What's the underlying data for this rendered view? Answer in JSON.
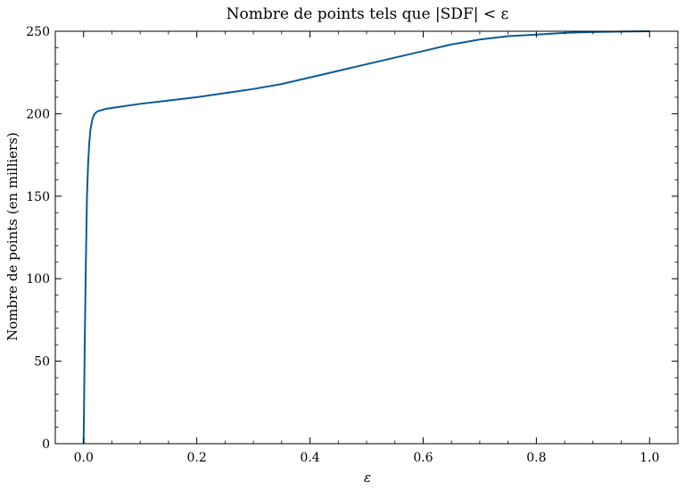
{
  "chart_data": {
    "type": "line",
    "title": "Nombre de points tels que |SDF| < ε",
    "xlabel": "ε",
    "ylabel": "Nombre de points (en milliers)",
    "xlim": [
      -0.05,
      1.05
    ],
    "ylim": [
      0,
      250
    ],
    "x_ticks": [
      0.0,
      0.2,
      0.4,
      0.6,
      0.8,
      1.0
    ],
    "x_tick_labels": [
      "0.0",
      "0.2",
      "0.4",
      "0.6",
      "0.8",
      "1.0"
    ],
    "y_ticks": [
      0,
      50,
      100,
      150,
      200,
      250
    ],
    "y_tick_labels": [
      "0",
      "50",
      "100",
      "150",
      "200",
      "250"
    ],
    "grid": false,
    "line_color": "#0c5a96",
    "series": [
      {
        "x": [
          0.0,
          0.002,
          0.004,
          0.006,
          0.008,
          0.01,
          0.012,
          0.015,
          0.018,
          0.021,
          0.024,
          0.027,
          0.03,
          0.04,
          0.06,
          0.1,
          0.15,
          0.2,
          0.25,
          0.3,
          0.35,
          0.4,
          0.45,
          0.5,
          0.55,
          0.6,
          0.65,
          0.7,
          0.75,
          0.8,
          0.85,
          0.9,
          0.95,
          1.0
        ],
        "y": [
          0,
          60,
          110,
          150,
          170,
          182,
          190,
          196,
          199,
          200.5,
          201.3,
          201.8,
          202,
          203,
          204,
          206,
          208,
          210,
          212.5,
          215,
          218,
          222,
          226,
          230,
          234,
          238,
          242,
          245,
          247,
          248,
          249,
          249.5,
          249.8,
          250
        ]
      }
    ]
  }
}
